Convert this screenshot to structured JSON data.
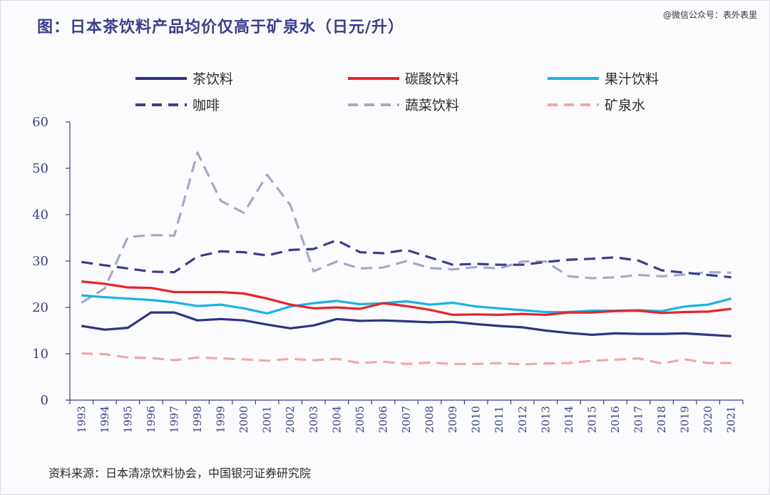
{
  "header": {
    "title": "图：日本茶饮料产品均价仅高于矿泉水（日元/升）",
    "watermark": "@微信公众号：表外表里"
  },
  "footer": {
    "source": "资料来源：日本清凉饮料协会，中国银河证券研究院"
  },
  "chart_data": {
    "type": "line",
    "title": "图：日本茶饮料产品均价仅高于矿泉水（日元/升）",
    "xlabel": "",
    "ylabel": "",
    "ylim": [
      0,
      60
    ],
    "yticks": [
      0,
      10,
      20,
      30,
      40,
      50,
      60
    ],
    "grid": false,
    "legend_position": "top",
    "x": [
      "1993",
      "1994",
      "1995",
      "1996",
      "1997",
      "1998",
      "1999",
      "2000",
      "2001",
      "2002",
      "2003",
      "2004",
      "2005",
      "2006",
      "2007",
      "2008",
      "2009",
      "2010",
      "2011",
      "2012",
      "2013",
      "2014",
      "2015",
      "2016",
      "2017",
      "2018",
      "2019",
      "2020",
      "2021"
    ],
    "series": [
      {
        "name": "茶饮料",
        "color": "#2e3386",
        "style": "solid",
        "values": [
          16,
          15.2,
          15.6,
          18.9,
          18.9,
          17.2,
          17.5,
          17.2,
          16.3,
          15.5,
          16.1,
          17.5,
          17.1,
          17.2,
          17,
          16.8,
          16.9,
          16.4,
          16,
          15.7,
          15,
          14.5,
          14.1,
          14.4,
          14.3,
          14.3,
          14.4,
          14.1,
          13.8
        ]
      },
      {
        "name": "碳酸饮料",
        "color": "#e8232a",
        "style": "solid",
        "values": [
          25.6,
          25.1,
          24.3,
          24.2,
          23.3,
          23.3,
          23.3,
          23,
          21.9,
          20.6,
          19.8,
          20,
          19.7,
          20.9,
          20.3,
          19.5,
          18.4,
          18.5,
          18.4,
          18.6,
          18.4,
          18.9,
          18.9,
          19.2,
          19.3,
          18.8,
          19,
          19.1,
          19.7
        ]
      },
      {
        "name": "果汁饮料",
        "color": "#1ab3e3",
        "style": "solid",
        "values": [
          22.6,
          22.2,
          21.9,
          21.6,
          21.1,
          20.3,
          20.6,
          19.8,
          18.7,
          20.2,
          20.9,
          21.4,
          20.7,
          20.9,
          21.3,
          20.6,
          21,
          20.2,
          19.8,
          19.4,
          19,
          19,
          19.3,
          19.3,
          19.4,
          19.2,
          20.2,
          20.6,
          21.9
        ]
      },
      {
        "name": "咖啡",
        "color": "#3a3f8f",
        "style": "dash",
        "values": [
          29.8,
          29.1,
          28.4,
          27.7,
          27.6,
          31,
          32.1,
          31.9,
          31.2,
          32.4,
          32.6,
          34.5,
          31.9,
          31.7,
          32.4,
          30.8,
          29.2,
          29.4,
          29.2,
          29.2,
          29.8,
          30.3,
          30.5,
          30.8,
          30.1,
          28,
          27.5,
          27,
          26.5
        ]
      },
      {
        "name": "蔬菜饮料",
        "color": "#a6a9c9",
        "style": "dash",
        "values": [
          21,
          24.1,
          35.2,
          35.6,
          35.5,
          53.4,
          43,
          40.4,
          48.6,
          42.1,
          27.8,
          29.9,
          28.4,
          28.6,
          30,
          28.5,
          28.2,
          28.7,
          28.4,
          29.9,
          29.9,
          26.7,
          26.3,
          26.5,
          27,
          26.7,
          27.1,
          27.6,
          27.5
        ]
      },
      {
        "name": "矿泉水",
        "color": "#f0a8a6",
        "style": "dash",
        "values": [
          10.1,
          9.9,
          9.2,
          9.1,
          8.6,
          9.2,
          9,
          8.8,
          8.5,
          8.9,
          8.6,
          8.9,
          8,
          8.3,
          7.8,
          8.1,
          7.8,
          7.8,
          8,
          7.7,
          7.9,
          8,
          8.5,
          8.7,
          9,
          7.9,
          8.8,
          8,
          8
        ]
      }
    ]
  }
}
